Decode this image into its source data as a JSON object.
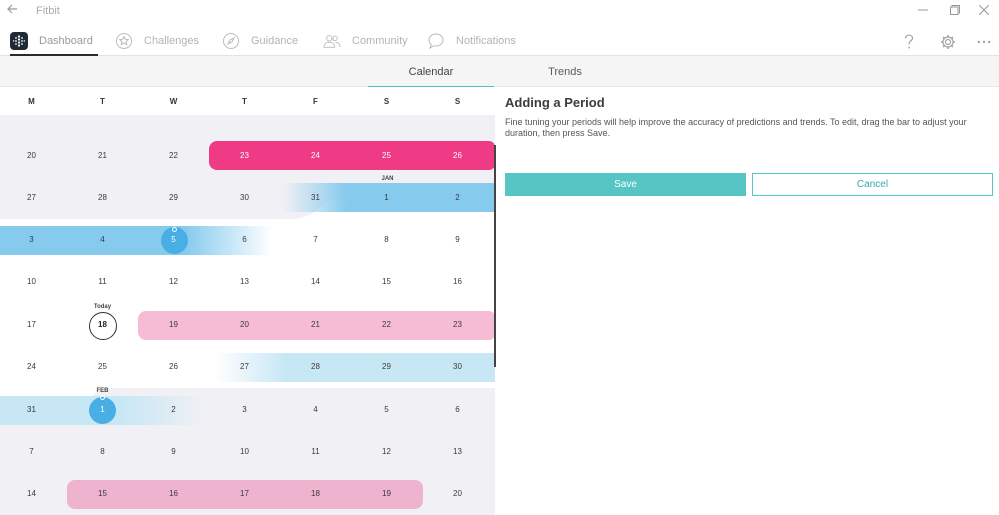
{
  "window": {
    "title": "Fitbit"
  },
  "nav": {
    "items": [
      {
        "label": "Dashboard",
        "icon": "dashboard-logo-icon",
        "active": true
      },
      {
        "label": "Challenges",
        "icon": "badge-icon"
      },
      {
        "label": "Guidance",
        "icon": "compass-icon"
      },
      {
        "label": "Community",
        "icon": "people-icon"
      },
      {
        "label": "Notifications",
        "icon": "chat-bubble-icon"
      }
    ],
    "help_icon": "help-icon",
    "settings_icon": "gear-icon",
    "more_icon": "more-icon"
  },
  "subtabs": [
    {
      "label": "Calendar",
      "active": true
    },
    {
      "label": "Trends"
    }
  ],
  "calendar": {
    "weekdays": [
      "M",
      "T",
      "W",
      "T",
      "F",
      "S",
      "S"
    ],
    "weeks": [
      {
        "days": [
          "20",
          "21",
          "22",
          "23",
          "24",
          "25",
          "26"
        ]
      },
      {
        "days": [
          "27",
          "28",
          "29",
          "30",
          "31",
          "1",
          "2"
        ],
        "month_label": "JAN"
      },
      {
        "days": [
          "3",
          "4",
          "5",
          "6",
          "7",
          "8",
          "9"
        ]
      },
      {
        "days": [
          "10",
          "11",
          "12",
          "13",
          "14",
          "15",
          "16"
        ]
      },
      {
        "days": [
          "17",
          "18",
          "19",
          "20",
          "21",
          "22",
          "23"
        ],
        "today_label": "Today"
      },
      {
        "days": [
          "24",
          "25",
          "26",
          "27",
          "28",
          "29",
          "30"
        ]
      },
      {
        "days": [
          "31",
          "1",
          "2",
          "3",
          "4",
          "5",
          "6"
        ],
        "month_label": "FEB"
      },
      {
        "days": [
          "7",
          "8",
          "9",
          "10",
          "11",
          "12",
          "13"
        ]
      },
      {
        "days": [
          "14",
          "15",
          "16",
          "17",
          "18",
          "19",
          "20"
        ]
      }
    ],
    "colors": {
      "period": "#ef3a86",
      "predicted_period": "#f6bcd6",
      "fertile": "#86caee",
      "predicted_fertile": "#c8e7f5",
      "ovulation": "#48aee4",
      "grey_month": "#f1f0f4"
    }
  },
  "panel": {
    "title": "Adding a Period",
    "description": "Fine tuning your periods will help improve the accuracy of predictions and trends. To edit, drag the bar to adjust your duration, then press Save.",
    "save_label": "Save",
    "cancel_label": "Cancel"
  }
}
